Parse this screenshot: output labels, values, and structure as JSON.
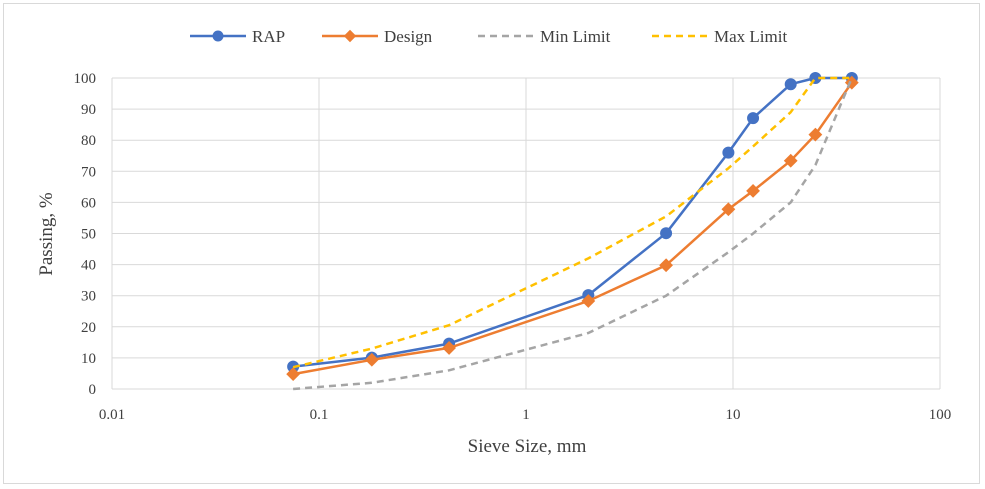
{
  "chart_data": {
    "type": "line",
    "xscale": "log",
    "xlim": [
      0.01,
      100
    ],
    "ylim": [
      0,
      100
    ],
    "xticks": [
      "0.01",
      "0.1",
      "1",
      "10",
      "100"
    ],
    "yticks": [
      "0",
      "10",
      "20",
      "30",
      "40",
      "50",
      "60",
      "70",
      "80",
      "90",
      "100"
    ],
    "xlabel": "Sieve Size, mm",
    "ylabel": "Passing, %",
    "grid": true,
    "legend": "top",
    "series": [
      {
        "name": "RAP",
        "color": "#4472C4",
        "line": "solid",
        "marker": "circle",
        "x": [
          0.075,
          0.18,
          0.425,
          2.0,
          4.75,
          9.5,
          12.5,
          19.0,
          25.0,
          37.5
        ],
        "y": [
          7.2,
          10.1,
          14.6,
          30.2,
          50.1,
          76.0,
          87.1,
          98.0,
          100.0,
          100.0
        ]
      },
      {
        "name": "Design",
        "color": "#ED7D31",
        "line": "solid",
        "marker": "diamond",
        "x": [
          0.075,
          0.18,
          0.425,
          2.0,
          4.75,
          9.5,
          12.5,
          19.0,
          25.0,
          37.5
        ],
        "y": [
          4.8,
          9.4,
          13.2,
          28.3,
          39.8,
          57.8,
          63.7,
          73.4,
          81.8,
          98.5
        ]
      },
      {
        "name": "Min Limit",
        "color": "#A5A5A5",
        "line": "dashed",
        "marker": "none",
        "x": [
          0.075,
          0.18,
          0.425,
          2.0,
          4.75,
          9.5,
          12.5,
          19.0,
          25.0,
          37.5
        ],
        "y": [
          0,
          2,
          6,
          18,
          30,
          44,
          50,
          60,
          72,
          100
        ]
      },
      {
        "name": "Max Limit",
        "color": "#FFC000",
        "line": "dashed",
        "marker": "none",
        "x": [
          0.075,
          0.18,
          0.425,
          2.0,
          4.75,
          9.5,
          12.5,
          19.0,
          25.0,
          37.5
        ],
        "y": [
          7,
          13,
          20.5,
          42,
          55.5,
          71,
          78,
          89,
          100,
          100
        ]
      }
    ]
  }
}
